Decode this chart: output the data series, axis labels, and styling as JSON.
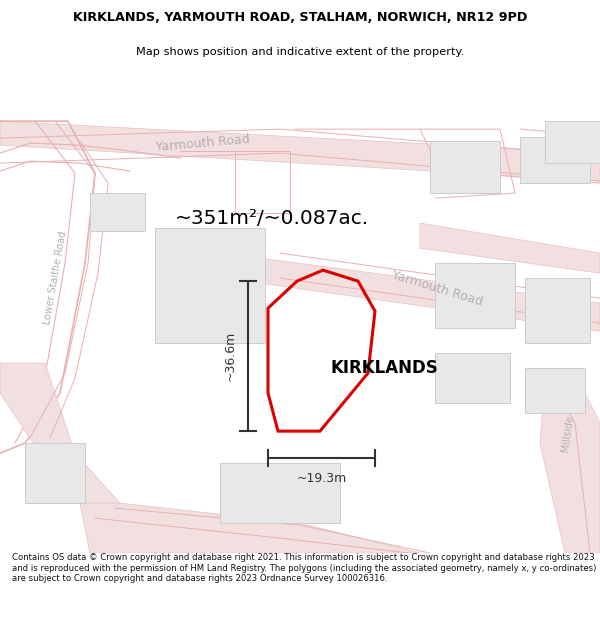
{
  "title_line1": "KIRKLANDS, YARMOUTH ROAD, STALHAM, NORWICH, NR12 9PD",
  "title_line2": "Map shows position and indicative extent of the property.",
  "area_text": "~351m²/~0.087ac.",
  "label_kirklands": "KIRKLANDS",
  "dim_height": "~36.6m",
  "dim_width": "~19.3m",
  "footer_text": "Contains OS data © Crown copyright and database right 2021. This information is subject to Crown copyright and database rights 2023 and is reproduced with the permission of HM Land Registry. The polygons (including the associated geometry, namely x, y co-ordinates) are subject to Crown copyright and database rights 2023 Ordnance Survey 100026316.",
  "bg_color": "#ffffff",
  "map_bg": "#ffffff",
  "road_fill": "#f2e0e0",
  "road_edge": "#e8c0c0",
  "road_line": "#e8b0b0",
  "building_fill": "#e8e8e8",
  "building_edge": "#cccccc",
  "plot_color": "#dd0000",
  "dim_color": "#333333",
  "road_label_color": "#b0b0b0",
  "title_color": "#000000",
  "footer_color": "#111111",
  "separator_color": "#cccccc"
}
